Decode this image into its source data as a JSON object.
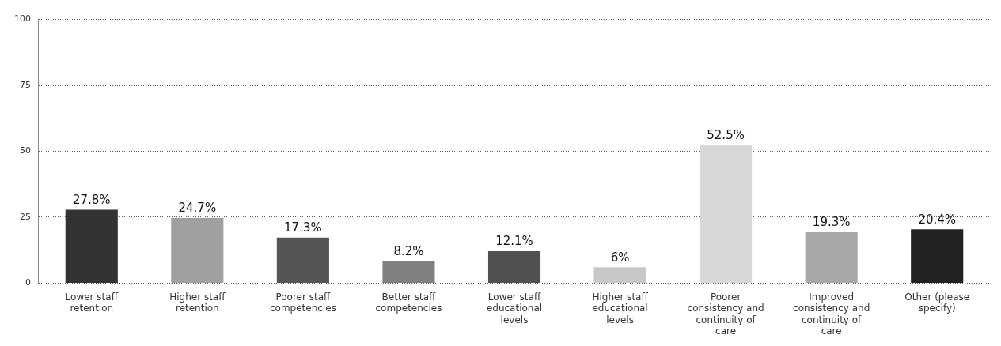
{
  "chart_data": {
    "type": "bar",
    "categories": [
      "Lower staff retention",
      "Higher staff retention",
      "Poorer staff competencies",
      "Better staff competencies",
      "Lower staff educational levels",
      "Higher staff educational levels",
      "Poorer consistency and continuity of care",
      "Improved consistency and continuity of care",
      "Other (please specify)"
    ],
    "values": [
      27.8,
      24.7,
      17.3,
      8.2,
      12.1,
      6,
      52.5,
      19.3,
      20.4
    ],
    "value_labels": [
      "27.8%",
      "24.7%",
      "17.3%",
      "8.2%",
      "12.1%",
      "6%",
      "52.5%",
      "19.3%",
      "20.4%"
    ],
    "colors": [
      "#333333",
      "#a0a0a0",
      "#555555",
      "#808080",
      "#505050",
      "#c8c8c8",
      "#d8d8d8",
      "#a8a8a8",
      "#222222"
    ],
    "ylim": [
      0,
      100
    ],
    "yticks": [
      0,
      25,
      50,
      75,
      100
    ],
    "grid": "y",
    "legend": false
  }
}
